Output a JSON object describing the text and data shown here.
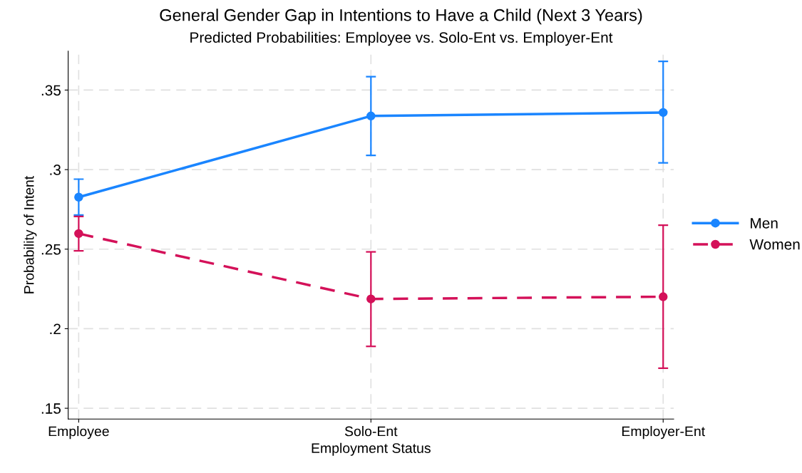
{
  "chart_data": {
    "type": "line",
    "title": "General Gender Gap in Intentions to Have a Child (Next 3 Years)",
    "subtitle": "Predicted Probabilities: Employee vs. Solo-Ent vs. Employer-Ent",
    "xlabel": "Employment Status",
    "ylabel": "Probability of Intent",
    "categories": [
      "Employee",
      "Solo-Ent",
      "Employer-Ent"
    ],
    "series": [
      {
        "name": "Men",
        "color": "#1a85ff",
        "values": [
          0.2827,
          0.3337,
          0.3359
        ],
        "errors": [
          [
            0.2714,
            0.294
          ],
          [
            0.3089,
            0.3584
          ],
          [
            0.3042,
            0.368
          ]
        ],
        "line_style": "solid"
      },
      {
        "name": "Women",
        "color": "#d41159",
        "values": [
          0.2598,
          0.2187,
          0.2201
        ],
        "errors": [
          [
            0.2489,
            0.2706
          ],
          [
            0.1889,
            0.2483
          ],
          [
            0.1752,
            0.2651
          ]
        ],
        "line_style": "dashed"
      }
    ],
    "ylim": [
      0.1432,
      0.3745
    ],
    "yticks": [
      {
        "value": 0.15,
        "label": ".15"
      },
      {
        "value": 0.2,
        "label": ".2"
      },
      {
        "value": 0.25,
        "label": ".25"
      },
      {
        "value": 0.3,
        "label": ".3"
      },
      {
        "value": 0.35,
        "label": ".35"
      }
    ],
    "grid": true,
    "legend": "right",
    "marker": "circle"
  }
}
